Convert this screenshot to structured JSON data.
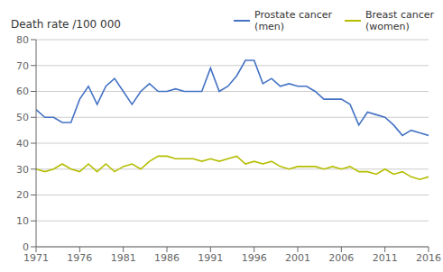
{
  "chart_data": {
    "type": "line",
    "ylabel": "Death rate /100 000",
    "x": [
      1971,
      1972,
      1973,
      1974,
      1975,
      1976,
      1977,
      1978,
      1979,
      1980,
      1981,
      1982,
      1983,
      1984,
      1985,
      1986,
      1987,
      1988,
      1989,
      1990,
      1991,
      1992,
      1993,
      1994,
      1995,
      1996,
      1997,
      1998,
      1999,
      2000,
      2001,
      2002,
      2003,
      2004,
      2005,
      2006,
      2007,
      2008,
      2009,
      2010,
      2011,
      2012,
      2013,
      2014,
      2015,
      2016
    ],
    "series": [
      {
        "name": "Prostate cancer\n(men)",
        "color": "#4472c4",
        "values": [
          53,
          50,
          50,
          48,
          48,
          57,
          62,
          55,
          62,
          65,
          60,
          55,
          60,
          63,
          60,
          60,
          61,
          60,
          60,
          60,
          69,
          60,
          62,
          66,
          72,
          72,
          63,
          65,
          62,
          63,
          62,
          62,
          60,
          57,
          57,
          57,
          55,
          47,
          52,
          51,
          50,
          47,
          43,
          45,
          44,
          43
        ]
      },
      {
        "name": "Breast cancer\n(women)",
        "color": "#b5bd00",
        "values": [
          30,
          29,
          30,
          32,
          30,
          29,
          32,
          29,
          32,
          29,
          31,
          32,
          30,
          33,
          35,
          35,
          34,
          34,
          34,
          33,
          34,
          33,
          34,
          35,
          32,
          33,
          32,
          33,
          31,
          30,
          31,
          31,
          31,
          30,
          31,
          30,
          31,
          29,
          29,
          28,
          30,
          28,
          29,
          27,
          26,
          27
        ]
      }
    ],
    "xlim": [
      1971,
      2016
    ],
    "ylim": [
      0,
      80
    ],
    "xticks": [
      1971,
      1976,
      1981,
      1986,
      1991,
      1996,
      2001,
      2006,
      2011,
      2016
    ],
    "yticks": [
      0,
      10,
      20,
      30,
      40,
      50,
      60,
      70,
      80
    ],
    "grid": true,
    "legend": "upper right"
  }
}
